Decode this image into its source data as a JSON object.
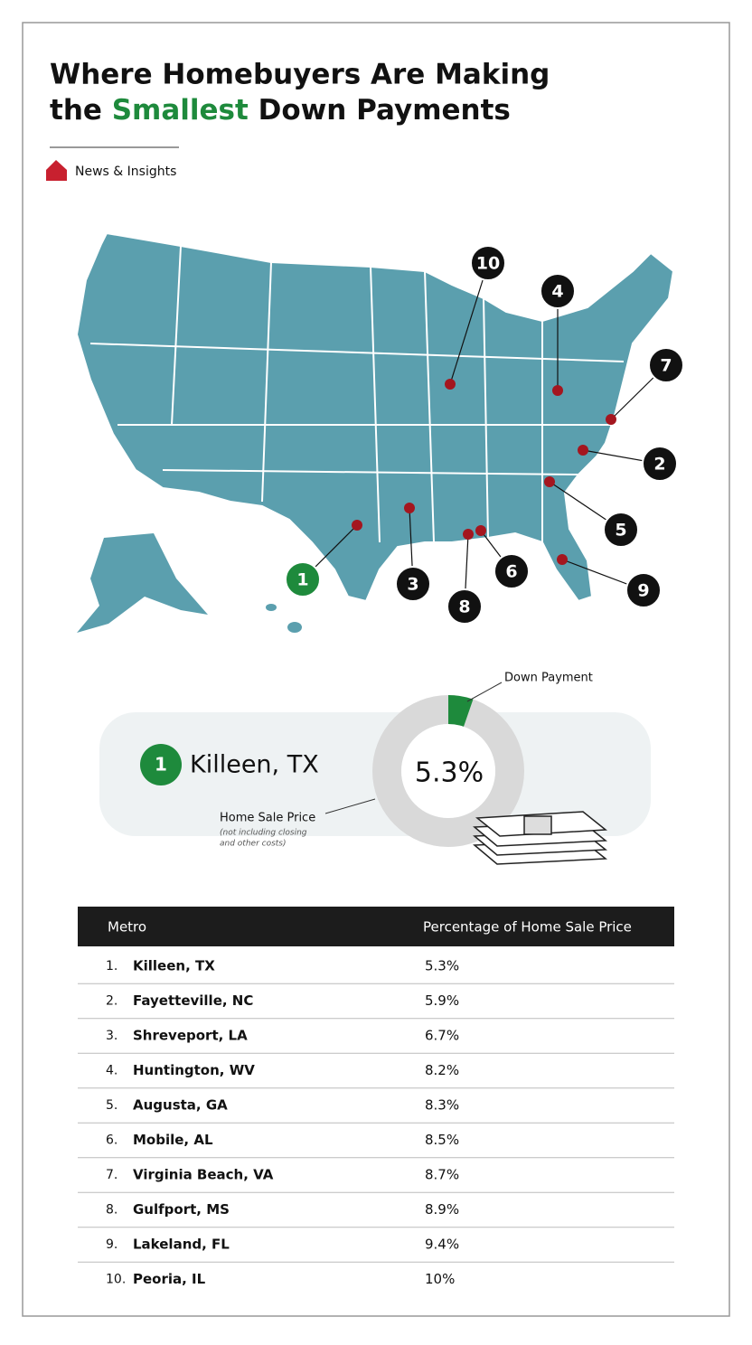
{
  "title": {
    "line1": "Where Homebuyers Are Making",
    "line2": [
      "the ",
      "Smallest",
      " Down Payments"
    ]
  },
  "brand": "News & Insights",
  "map": {
    "pins": [
      {
        "label": "1"
      },
      {
        "label": "2"
      },
      {
        "label": "3"
      },
      {
        "label": "4"
      },
      {
        "label": "5"
      },
      {
        "label": "6"
      },
      {
        "label": "7"
      },
      {
        "label": "8"
      },
      {
        "label": "9"
      },
      {
        "label": "10"
      }
    ]
  },
  "highlight": {
    "rank": "1",
    "metro": "Killeen, TX",
    "donut": {
      "value": 5.3,
      "label": "5.3%"
    },
    "down_payment_label": "Down Payment",
    "sale_price_label": "Home Sale Price",
    "sale_price_note": [
      "(not including closing",
      "and other costs)"
    ]
  },
  "table": {
    "columns": [
      "Metro",
      "Percentage of Home Sale Price"
    ],
    "rows": [
      [
        "1.",
        "Killeen, TX",
        "5.3%"
      ],
      [
        "2.",
        "Fayetteville, NC",
        "5.9%"
      ],
      [
        "3.",
        "Shreveport, LA",
        "6.7%"
      ],
      [
        "4.",
        "Huntington, WV",
        "8.2%"
      ],
      [
        "5.",
        "Augusta, GA",
        "8.3%"
      ],
      [
        "6.",
        "Mobile, AL",
        "8.5%"
      ],
      [
        "7.",
        "Virginia Beach, VA",
        "8.7%"
      ],
      [
        "8.",
        "Gulfport, MS",
        "8.9%"
      ],
      [
        "9.",
        "Lakeland, FL",
        "9.4%"
      ],
      [
        "10.",
        "Peoria, IL",
        "10%"
      ]
    ]
  }
}
